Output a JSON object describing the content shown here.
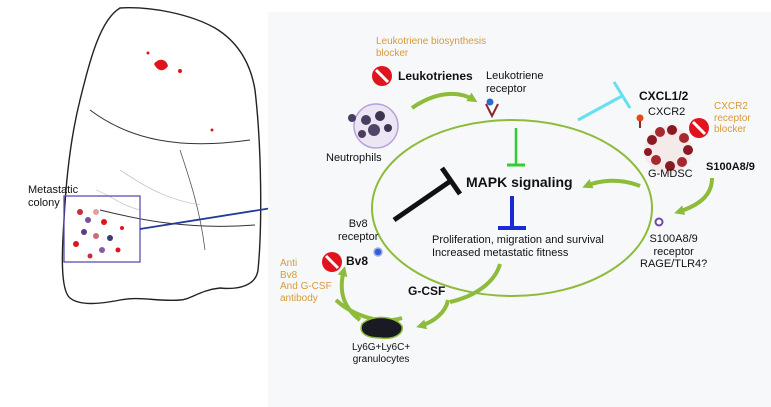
{
  "lung": {
    "label_line1": "Metastatic",
    "label_line2": "colony"
  },
  "nodes": {
    "lt_blocker_line1": "Leukotriene biosynthesis",
    "lt_blocker_line2": "blocker",
    "leukotrienes": "Leukotrienes",
    "lt_receptor_line1": "Leukotriene",
    "lt_receptor_line2": "receptor",
    "neutrophils": "Neutrophils",
    "cxcl": "CXCL1/2",
    "cxcr2": "CXCR2",
    "cxcr2_blocker_line1": "CXCR2",
    "cxcr2_blocker_line2": "receptor",
    "cxcr2_blocker_line3": "blocker",
    "gmdsc": "G-MDSC",
    "s100": "S100A8/9",
    "mapk": "MAPK signaling",
    "prolif_line1": "Proliferation, migration and survival",
    "prolif_line2": "Increased metastatic fitness",
    "bv8_receptor_line1": "Bv8",
    "bv8_receptor_line2": "receptor",
    "bv8": "Bv8",
    "anti_line1": "Anti",
    "anti_line2": "Bv8",
    "anti_line3": "And G-CSF",
    "anti_line4": "antibody",
    "gcsf": "G-CSF",
    "s100_receptor_line1": "S100A8/9",
    "s100_receptor_line2": "receptor",
    "s100_receptor_line3": "RAGE/TLR4?",
    "ly6g_line1": "Ly6G+Ly6C+",
    "ly6g_line2": "granulocytes"
  },
  "colors": {
    "arrow_green": "#8dbb3a",
    "inhibit_green": "#33cc33",
    "inhibit_blue": "#1a2ad6",
    "inhibit_black": "#111111",
    "inhibit_cyan": "#66e0f0",
    "block_red": "#e0141e",
    "orange_text": "#d89a3a",
    "zoom_line": "#223a9a"
  }
}
